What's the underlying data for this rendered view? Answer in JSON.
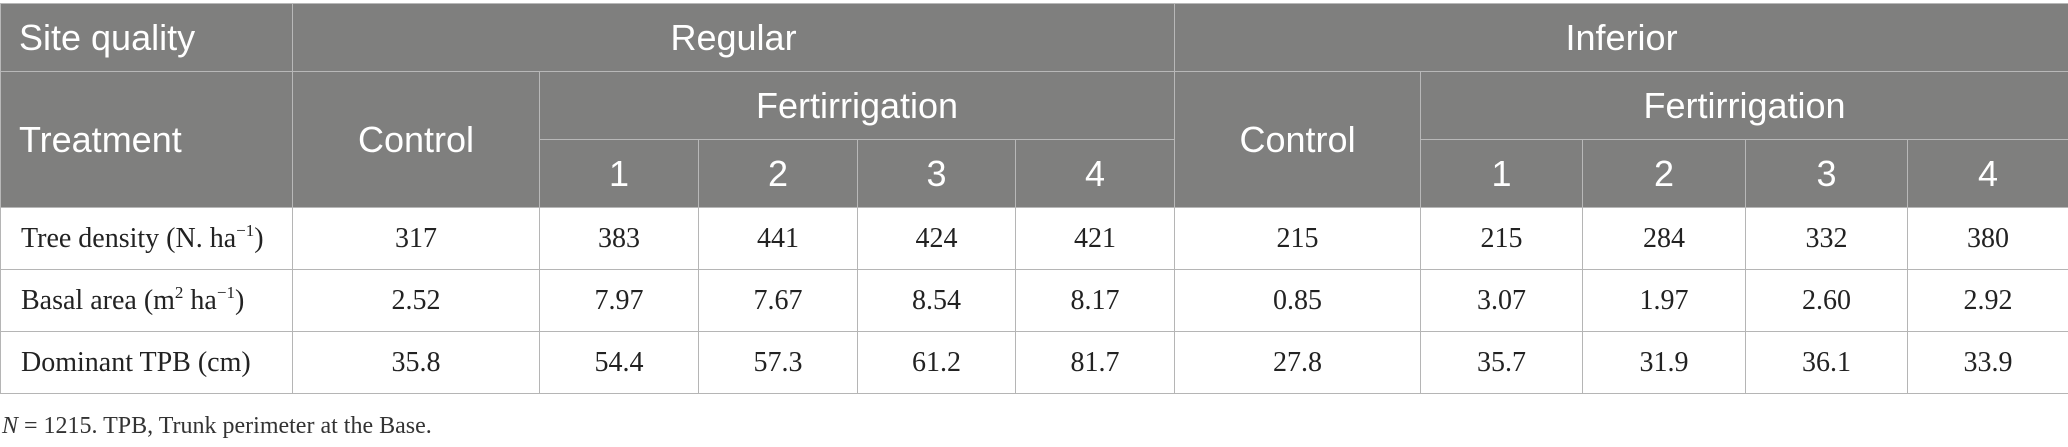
{
  "header": {
    "site_quality": "Site quality",
    "regular": "Regular",
    "inferior": "Inferior",
    "treatment": "Treatment",
    "control": "Control",
    "fertirrigation": "Fertirrigation",
    "levels": [
      "1",
      "2",
      "3",
      "4"
    ]
  },
  "rows": [
    {
      "label": "Tree density (N. ha",
      "sup": "−1",
      "label_end": ")",
      "values": [
        "317",
        "383",
        "441",
        "424",
        "421",
        "215",
        "215",
        "284",
        "332",
        "380"
      ]
    },
    {
      "label": "Basal area (m",
      "sup": "2",
      "label_mid": " ha",
      "sup2": "−1",
      "label_end": ")",
      "values": [
        "2.52",
        "7.97",
        "7.67",
        "8.54",
        "8.17",
        "0.85",
        "3.07",
        "1.97",
        "2.60",
        "2.92"
      ]
    },
    {
      "label": "Dominant TPB (cm)",
      "values": [
        "35.8",
        "54.4",
        "57.3",
        "61.2",
        "81.7",
        "27.8",
        "35.7",
        "31.9",
        "36.1",
        "33.9"
      ]
    }
  ],
  "footnote": {
    "n": "N",
    "text": " = 1215. TPB, Trunk perimeter at the Base."
  }
}
